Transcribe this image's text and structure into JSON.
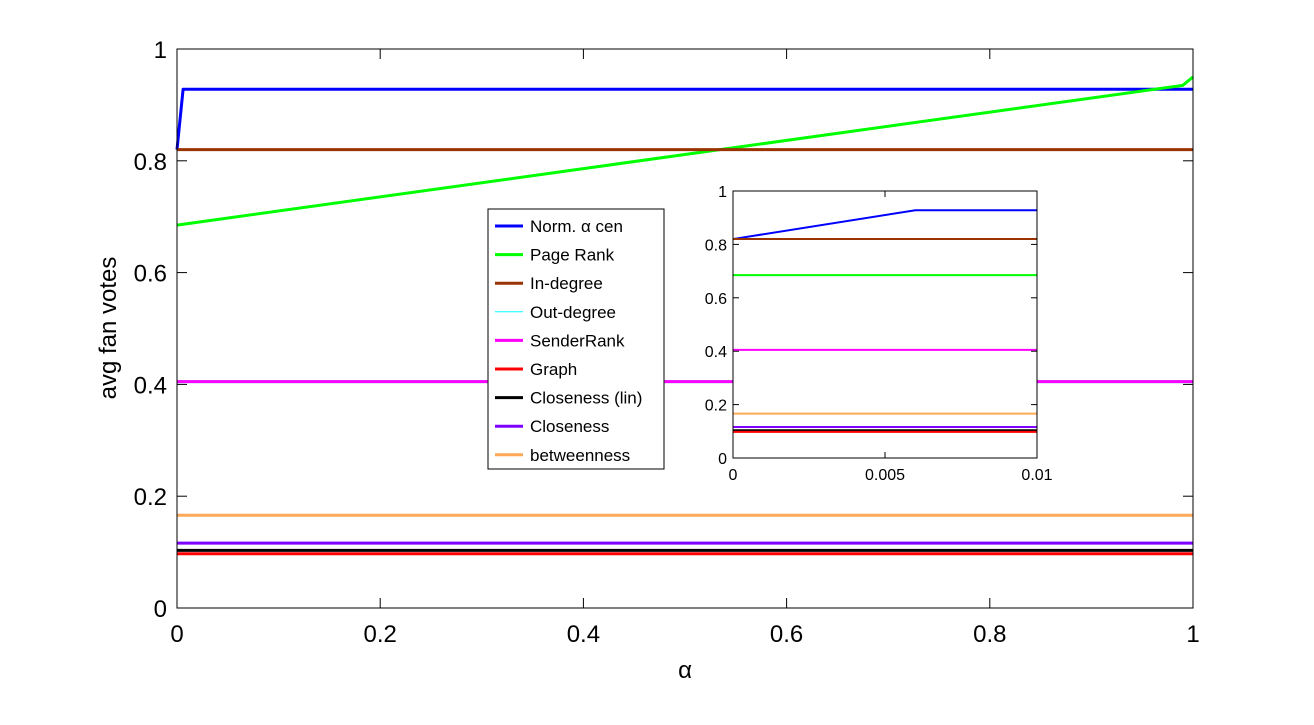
{
  "chart_data": [
    {
      "type": "line",
      "xlabel": "α",
      "ylabel": "avg fan votes",
      "xlim": [
        0,
        1
      ],
      "ylim": [
        0,
        1
      ],
      "xticks": [
        "0",
        "0.2",
        "0.4",
        "0.6",
        "0.8",
        "1"
      ],
      "yticks": [
        "0",
        "0.2",
        "0.4",
        "0.6",
        "0.8",
        "1"
      ],
      "grid": false,
      "legend": "center",
      "series": [
        {
          "name": "Norm. α cen",
          "color": "#0000ff",
          "x": [
            0,
            0.006,
            0.99,
            1
          ],
          "y": [
            0.82,
            0.928,
            0.928,
            0.928
          ]
        },
        {
          "name": "Page Rank",
          "color": "#00ff00",
          "x": [
            0,
            0.99,
            1
          ],
          "y": [
            0.685,
            0.935,
            0.95
          ]
        },
        {
          "name": "In-degree",
          "color": "#993300",
          "x": [
            0,
            1
          ],
          "y": [
            0.82,
            0.82
          ]
        },
        {
          "name": "Out-degree",
          "color": "#00ffff",
          "x": [
            0,
            1
          ],
          "y": [
            0.405,
            0.405
          ]
        },
        {
          "name": "SenderRank",
          "color": "#ff00ff",
          "x": [
            0,
            1
          ],
          "y": [
            0.405,
            0.405
          ]
        },
        {
          "name": "Graph",
          "color": "#ff0000",
          "x": [
            0,
            1
          ],
          "y": [
            0.097,
            0.097
          ]
        },
        {
          "name": "Closeness (lin)",
          "color": "#000000",
          "x": [
            0,
            1
          ],
          "y": [
            0.103,
            0.103
          ]
        },
        {
          "name": "Closeness",
          "color": "#7f00ff",
          "x": [
            0,
            1
          ],
          "y": [
            0.116,
            0.116
          ]
        },
        {
          "name": "betweenness",
          "color": "#ffa858",
          "x": [
            0,
            1
          ],
          "y": [
            0.166,
            0.166
          ]
        }
      ]
    },
    {
      "type": "line",
      "xlim": [
        0,
        0.01
      ],
      "ylim": [
        0,
        1
      ],
      "xticks": [
        "0",
        "0.005",
        "0.01"
      ],
      "yticks": [
        "0",
        "0.2",
        "0.4",
        "0.6",
        "0.8",
        "1"
      ],
      "grid": false,
      "series": [
        {
          "color": "#0000ff",
          "x": [
            0,
            0.006,
            0.01
          ],
          "y": [
            0.82,
            0.928,
            0.928
          ]
        },
        {
          "color": "#993300",
          "x": [
            0,
            0.01
          ],
          "y": [
            0.82,
            0.82
          ]
        },
        {
          "color": "#00ff00",
          "x": [
            0,
            0.01
          ],
          "y": [
            0.685,
            0.685
          ]
        },
        {
          "color": "#ff00ff",
          "x": [
            0,
            0.01
          ],
          "y": [
            0.405,
            0.405
          ]
        },
        {
          "color": "#ffa858",
          "x": [
            0,
            0.01
          ],
          "y": [
            0.166,
            0.166
          ]
        },
        {
          "color": "#7f00ff",
          "x": [
            0,
            0.01
          ],
          "y": [
            0.116,
            0.116
          ]
        },
        {
          "color": "#000000",
          "x": [
            0,
            0.01
          ],
          "y": [
            0.104,
            0.104
          ]
        },
        {
          "color": "#ff0000",
          "x": [
            0,
            0.01
          ],
          "y": [
            0.098,
            0.098
          ]
        }
      ]
    }
  ]
}
